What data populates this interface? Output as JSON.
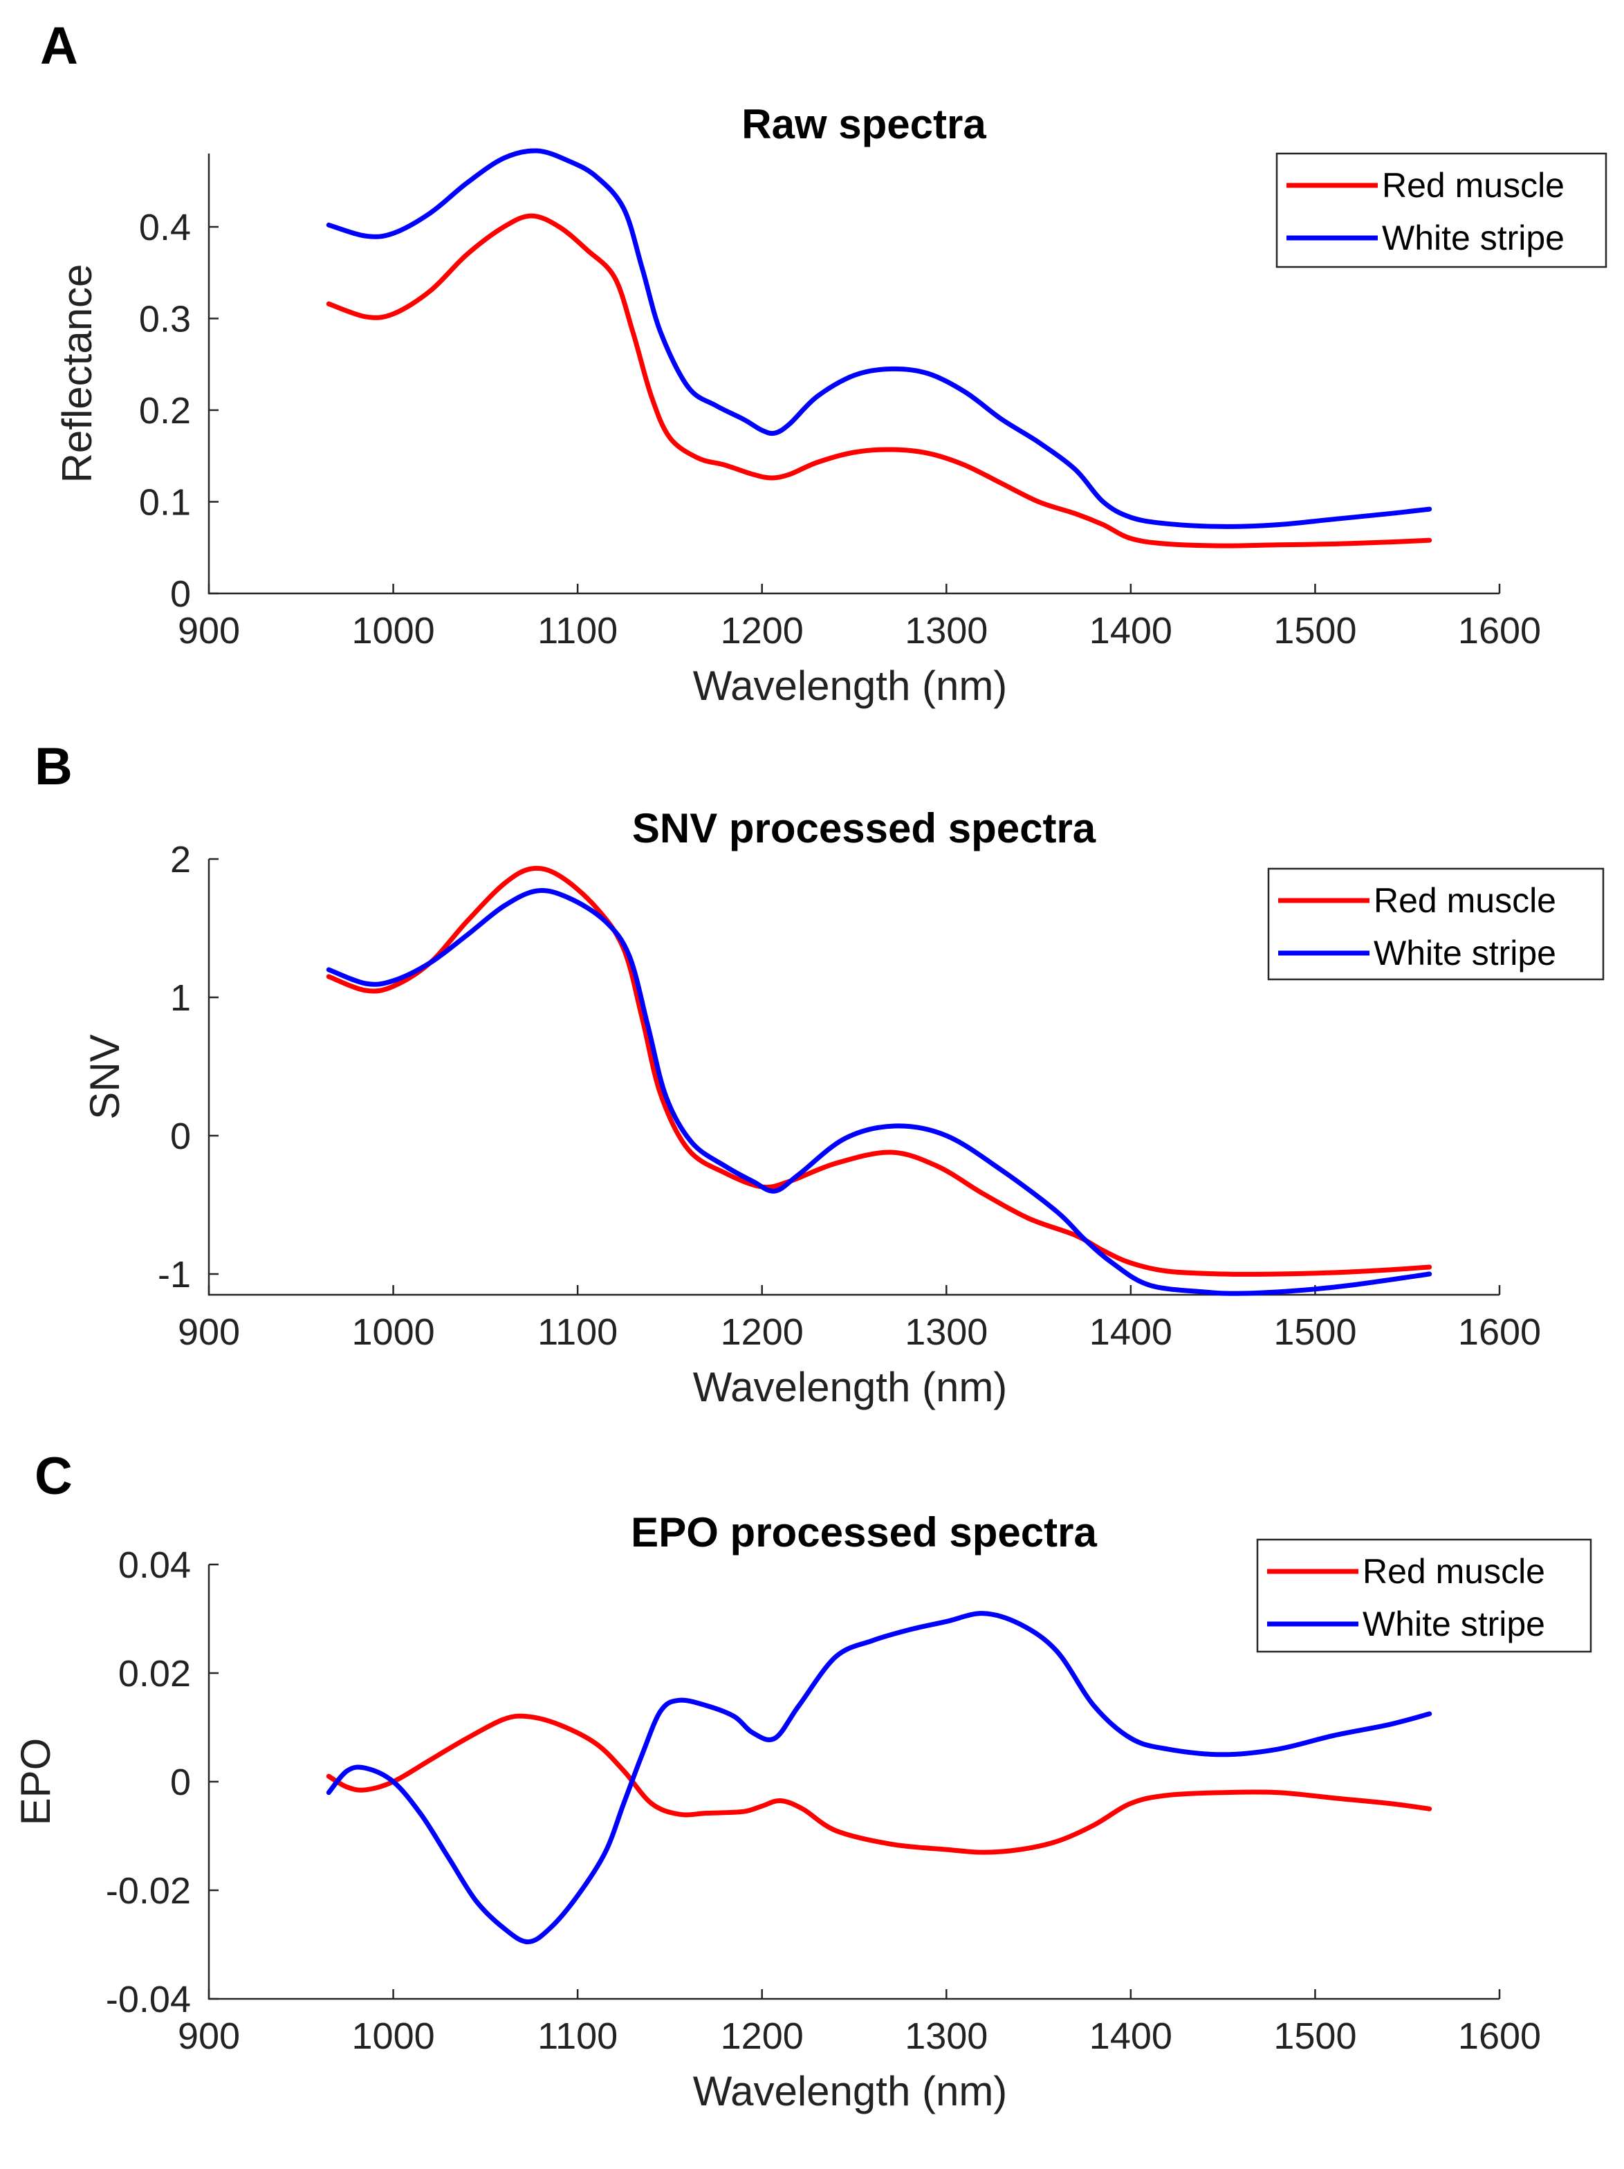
{
  "chart_data": [
    {
      "panel": "A",
      "type": "line",
      "title": "Raw spectra",
      "xlabel": "Wavelength (nm)",
      "ylabel": "Reflectance",
      "xlim": [
        900,
        1600
      ],
      "ylim": [
        0,
        0.48
      ],
      "xticks": [
        900,
        1000,
        1100,
        1200,
        1300,
        1400,
        1500,
        1600
      ],
      "yticks": [
        0,
        0.1,
        0.2,
        0.3,
        0.4
      ],
      "ytick_labels": [
        "0",
        "0.1",
        "0.2",
        "0.3",
        "0.4"
      ],
      "legend_position": "top-right",
      "series": [
        {
          "name": "Red muscle",
          "color": "#ff0000",
          "x": [
            965,
            985,
            1000,
            1020,
            1040,
            1060,
            1075,
            1090,
            1105,
            1120,
            1130,
            1140,
            1150,
            1165,
            1180,
            1195,
            1205,
            1215,
            1230,
            1250,
            1270,
            1290,
            1310,
            1330,
            1350,
            1370,
            1385,
            1400,
            1420,
            1450,
            1480,
            1510,
            1540,
            1562
          ],
          "y": [
            0.316,
            0.302,
            0.305,
            0.33,
            0.37,
            0.4,
            0.412,
            0.4,
            0.375,
            0.345,
            0.285,
            0.215,
            0.17,
            0.148,
            0.14,
            0.13,
            0.126,
            0.13,
            0.143,
            0.154,
            0.157,
            0.153,
            0.14,
            0.12,
            0.1,
            0.087,
            0.075,
            0.06,
            0.054,
            0.052,
            0.053,
            0.054,
            0.056,
            0.058
          ]
        },
        {
          "name": "White stripe",
          "color": "#0000ff",
          "x": [
            965,
            985,
            1000,
            1020,
            1040,
            1060,
            1078,
            1095,
            1110,
            1125,
            1135,
            1145,
            1160,
            1175,
            1190,
            1200,
            1207,
            1215,
            1230,
            1250,
            1270,
            1290,
            1310,
            1330,
            1350,
            1370,
            1385,
            1400,
            1420,
            1450,
            1480,
            1510,
            1540,
            1562
          ],
          "y": [
            0.402,
            0.39,
            0.393,
            0.415,
            0.448,
            0.475,
            0.483,
            0.472,
            0.455,
            0.42,
            0.355,
            0.285,
            0.225,
            0.205,
            0.19,
            0.178,
            0.175,
            0.185,
            0.215,
            0.238,
            0.245,
            0.24,
            0.22,
            0.19,
            0.165,
            0.135,
            0.1,
            0.083,
            0.076,
            0.073,
            0.075,
            0.081,
            0.087,
            0.092
          ]
        }
      ]
    },
    {
      "panel": "B",
      "type": "line",
      "title": "SNV processed spectra",
      "xlabel": "Wavelength (nm)",
      "ylabel": "SNV",
      "xlim": [
        900,
        1600
      ],
      "ylim": [
        -1.15,
        2
      ],
      "xticks": [
        900,
        1000,
        1100,
        1200,
        1300,
        1400,
        1500,
        1600
      ],
      "yticks": [
        -1,
        0,
        1,
        2
      ],
      "ytick_labels": [
        "-1",
        "0",
        "1",
        "2"
      ],
      "legend_position": "top-right",
      "series": [
        {
          "name": "Red muscle",
          "color": "#ff0000",
          "x": [
            965,
            985,
            1000,
            1020,
            1040,
            1060,
            1075,
            1090,
            1110,
            1125,
            1135,
            1145,
            1160,
            1180,
            1200,
            1215,
            1240,
            1270,
            1295,
            1320,
            1345,
            1370,
            1385,
            1400,
            1420,
            1450,
            1480,
            1510,
            1540,
            1562
          ],
          "y": [
            1.15,
            1.05,
            1.08,
            1.25,
            1.55,
            1.82,
            1.93,
            1.88,
            1.65,
            1.35,
            0.85,
            0.3,
            -0.1,
            -0.27,
            -0.37,
            -0.33,
            -0.2,
            -0.12,
            -0.22,
            -0.42,
            -0.6,
            -0.72,
            -0.83,
            -0.92,
            -0.98,
            -1.0,
            -1.0,
            -0.99,
            -0.97,
            -0.95
          ]
        },
        {
          "name": "White stripe",
          "color": "#0000ff",
          "x": [
            965,
            985,
            1000,
            1020,
            1040,
            1060,
            1078,
            1095,
            1115,
            1128,
            1138,
            1148,
            1162,
            1180,
            1195,
            1207,
            1220,
            1245,
            1272,
            1300,
            1330,
            1360,
            1375,
            1390,
            1410,
            1440,
            1460,
            1490,
            1520,
            1562
          ],
          "y": [
            1.2,
            1.1,
            1.12,
            1.25,
            1.45,
            1.66,
            1.77,
            1.72,
            1.55,
            1.3,
            0.8,
            0.28,
            -0.05,
            -0.22,
            -0.33,
            -0.4,
            -0.28,
            -0.02,
            0.07,
            0.0,
            -0.25,
            -0.55,
            -0.75,
            -0.92,
            -1.08,
            -1.13,
            -1.14,
            -1.12,
            -1.08,
            -1.0
          ]
        }
      ]
    },
    {
      "panel": "C",
      "type": "line",
      "title": "EPO processed spectra",
      "xlabel": "Wavelength (nm)",
      "ylabel": "EPO",
      "xlim": [
        900,
        1600
      ],
      "ylim": [
        -0.04,
        0.04
      ],
      "xticks": [
        900,
        1000,
        1100,
        1200,
        1300,
        1400,
        1500,
        1600
      ],
      "yticks": [
        -0.04,
        -0.02,
        0,
        0.02,
        0.04
      ],
      "ytick_labels": [
        "-0.04",
        "-0.02",
        "0",
        "0.02",
        "0.04"
      ],
      "legend_position": "top-right",
      "series": [
        {
          "name": "Red muscle",
          "color": "#ff0000",
          "x": [
            965,
            975,
            985,
            1000,
            1020,
            1040,
            1060,
            1073,
            1090,
            1110,
            1125,
            1140,
            1155,
            1170,
            1190,
            1200,
            1210,
            1222,
            1240,
            1270,
            1300,
            1320,
            1340,
            1360,
            1380,
            1400,
            1420,
            1450,
            1480,
            1510,
            1540,
            1562
          ],
          "y": [
            0.001,
            -0.001,
            -0.0015,
            0.0,
            0.004,
            0.008,
            0.0115,
            0.012,
            0.0105,
            0.007,
            0.002,
            -0.004,
            -0.006,
            -0.0058,
            -0.0055,
            -0.0045,
            -0.0035,
            -0.005,
            -0.009,
            -0.0115,
            -0.0125,
            -0.013,
            -0.0125,
            -0.011,
            -0.008,
            -0.004,
            -0.0025,
            -0.002,
            -0.002,
            -0.003,
            -0.004,
            -0.005
          ]
        },
        {
          "name": "White stripe",
          "color": "#0000ff",
          "x": [
            965,
            975,
            985,
            1000,
            1015,
            1030,
            1045,
            1060,
            1073,
            1085,
            1100,
            1115,
            1125,
            1135,
            1145,
            1155,
            1170,
            1185,
            1195,
            1207,
            1220,
            1240,
            1260,
            1280,
            1300,
            1320,
            1340,
            1360,
            1380,
            1400,
            1420,
            1450,
            1480,
            1510,
            1540,
            1562
          ],
          "y": [
            -0.002,
            0.002,
            0.0025,
            0.0,
            -0.006,
            -0.014,
            -0.022,
            -0.027,
            -0.0295,
            -0.027,
            -0.021,
            -0.013,
            -0.004,
            0.005,
            0.013,
            0.015,
            0.014,
            0.012,
            0.009,
            0.008,
            0.014,
            0.023,
            0.026,
            0.028,
            0.0295,
            0.031,
            0.029,
            0.024,
            0.014,
            0.008,
            0.006,
            0.005,
            0.006,
            0.0085,
            0.0105,
            0.0125
          ]
        }
      ]
    }
  ]
}
